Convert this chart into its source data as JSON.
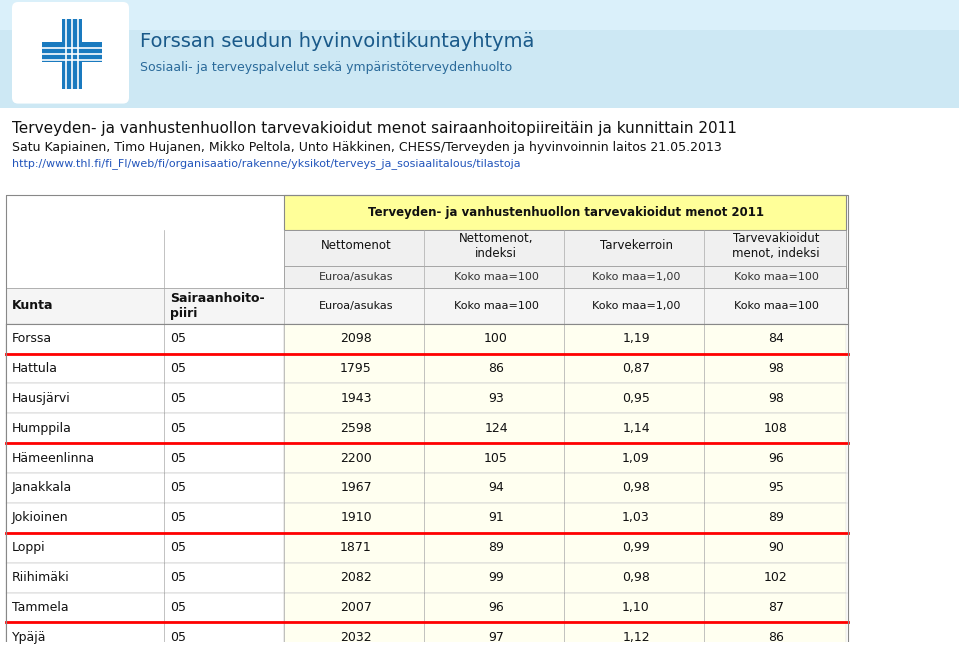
{
  "header_bg_color": "#c8e4f0",
  "header_main_text": "Forssan seudun hyvinvointikuntayhtymä",
  "header_sub_text": "Sosiaali- ja terveyspalvelut sekä ympäristöterveydenhuolto",
  "title_line1": "Terveyden- ja vanhustenhuollon tarvevakioidut menot sairaanhoitopiireitäin ja kunnittain 2011",
  "title_line2": "Satu Kapiainen, Timo Hujanen, Mikko Peltola, Unto Häkkinen, CHESS/Terveyden ja hyvinvoinnin laitos 21.05.2013",
  "title_line3": "http://www.thl.fi/fi_FI/web/fi/organisaatio/rakenne/yksikot/terveys_ja_sosiaalitalous/tilastoja",
  "table_title": "Terveyden- ja vanhustenhuollon tarvevakioidut menot 2011",
  "table_title_bg": "#ffff99",
  "col_headers": [
    "Nettomenot",
    "Nettomenot,\nindeksi",
    "Tarvekerroin",
    "Tarvevakioidut\nmenot, indeksi"
  ],
  "col_subheaders": [
    "Euroa/asukas",
    "Koko maa=100",
    "Koko maa=1,00",
    "Koko maa=100"
  ],
  "row_header1": "Kunta",
  "row_header2": "Sairaanhoito-\npiiri",
  "rows": [
    [
      "Forssa",
      "05",
      "2098",
      "100",
      "1,19",
      "84"
    ],
    [
      "Hattula",
      "05",
      "1795",
      "86",
      "0,87",
      "98"
    ],
    [
      "Hausjärvi",
      "05",
      "1943",
      "93",
      "0,95",
      "98"
    ],
    [
      "Humppila",
      "05",
      "2598",
      "124",
      "1,14",
      "108"
    ],
    [
      "Hämeenlinna",
      "05",
      "2200",
      "105",
      "1,09",
      "96"
    ],
    [
      "Janakkala",
      "05",
      "1967",
      "94",
      "0,98",
      "95"
    ],
    [
      "Jokioinen",
      "05",
      "1910",
      "91",
      "1,03",
      "89"
    ],
    [
      "Loppi",
      "05",
      "1871",
      "89",
      "0,99",
      "90"
    ],
    [
      "Riihimäki",
      "05",
      "2082",
      "99",
      "0,98",
      "102"
    ],
    [
      "Tammela",
      "05",
      "2007",
      "96",
      "1,10",
      "87"
    ],
    [
      "Ypäjä",
      "05",
      "2032",
      "97",
      "1,12",
      "86"
    ]
  ],
  "red_border_rows": [
    0,
    3,
    6,
    9
  ]
}
